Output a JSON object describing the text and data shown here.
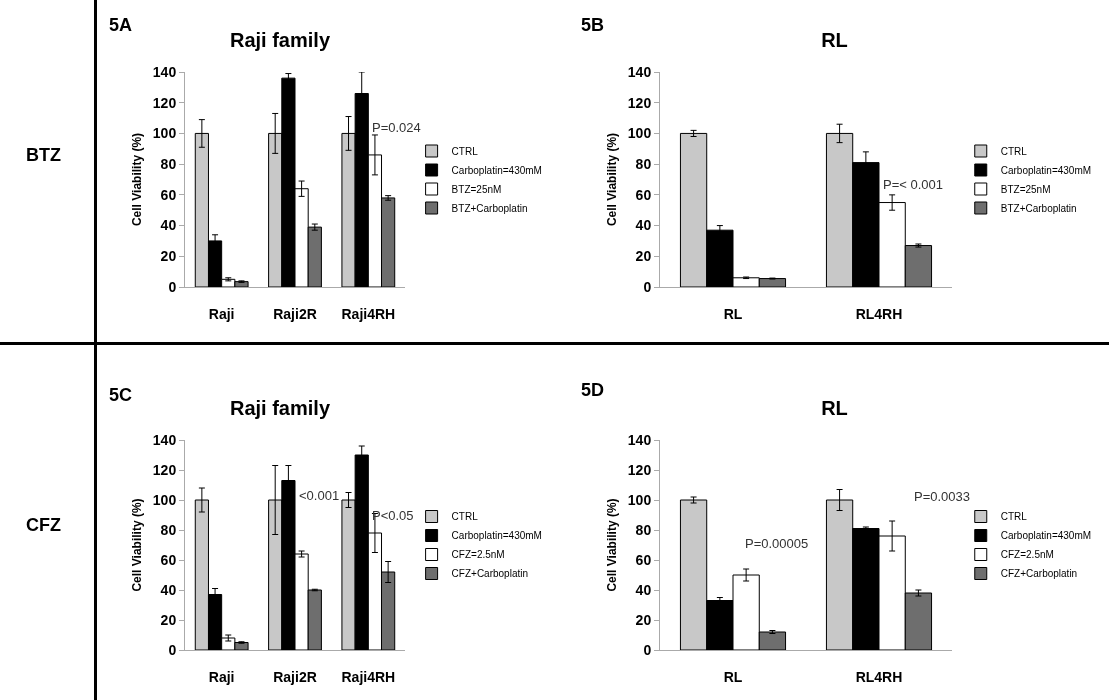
{
  "chart_data": [
    {
      "type": "bar",
      "title": "Raji family",
      "ylabel": "Cell Viability (%)",
      "categories": [
        "Raji",
        "Raji2R",
        "Raji4RH"
      ],
      "ylim": [
        0,
        140
      ],
      "yticks": [
        0,
        20,
        40,
        60,
        80,
        100,
        120,
        140
      ],
      "grid": false,
      "legend": "right",
      "annotations": [
        "5A",
        "BTZ",
        {
          "text": "P=0.024",
          "x": "Raji4RH",
          "y": 104
        }
      ],
      "series": [
        {
          "name": "CTRL",
          "color": "#c8c8c8",
          "values": [
            100,
            100,
            100
          ],
          "errors": [
            9,
            13,
            11
          ]
        },
        {
          "name": "Carboplatin=430mM",
          "color": "#000000",
          "values": [
            30,
            136,
            126
          ],
          "errors": [
            4,
            3,
            14
          ]
        },
        {
          "name": "BTZ=25nM",
          "color": "#ffffff",
          "values": [
            5,
            64,
            86
          ],
          "errors": [
            1,
            5,
            13
          ]
        },
        {
          "name": "BTZ+Carboplatin",
          "color": "#6e6e6e",
          "values": [
            3.5,
            39,
            58
          ],
          "errors": [
            0.5,
            2,
            1.5
          ]
        }
      ]
    },
    {
      "type": "bar",
      "title": "RL",
      "ylabel": "Cell Viability (%)",
      "categories": [
        "RL",
        "RL4RH"
      ],
      "ylim": [
        0,
        140
      ],
      "yticks": [
        0,
        20,
        40,
        60,
        80,
        100,
        120,
        140
      ],
      "grid": false,
      "legend": "right",
      "annotations": [
        "5B",
        {
          "text": "P=< 0.001",
          "x": "RL4RH",
          "y": 67
        }
      ],
      "series": [
        {
          "name": "CTRL",
          "color": "#c8c8c8",
          "values": [
            100,
            100
          ],
          "errors": [
            2,
            6
          ]
        },
        {
          "name": "Carboplatin=430mM",
          "color": "#000000",
          "values": [
            37,
            81
          ],
          "errors": [
            3,
            7
          ]
        },
        {
          "name": "BTZ=25nM",
          "color": "#ffffff",
          "values": [
            6,
            55
          ],
          "errors": [
            0.5,
            5
          ]
        },
        {
          "name": "BTZ+Carboplatin",
          "color": "#6e6e6e",
          "values": [
            5.5,
            27
          ],
          "errors": [
            0.3,
            1
          ]
        }
      ]
    },
    {
      "type": "bar",
      "title": "Raji family",
      "ylabel": "Cell Viability (%)",
      "categories": [
        "Raji",
        "Raji2R",
        "Raji4RH"
      ],
      "ylim": [
        0,
        140
      ],
      "yticks": [
        0,
        20,
        40,
        60,
        80,
        100,
        120,
        140
      ],
      "grid": false,
      "legend": "right",
      "annotations": [
        "5C",
        "CFZ",
        {
          "text": "<0.001",
          "x": "Raji2R",
          "y": 103
        },
        {
          "text": "P<0.05",
          "x": "Raji4RH",
          "y": 90
        }
      ],
      "series": [
        {
          "name": "CTRL",
          "color": "#c8c8c8",
          "values": [
            100,
            100,
            100
          ],
          "errors": [
            8,
            23,
            5
          ]
        },
        {
          "name": "Carboplatin=430mM",
          "color": "#000000",
          "values": [
            37,
            113,
            130
          ],
          "errors": [
            4,
            10,
            6
          ]
        },
        {
          "name": "CFZ=2.5nM",
          "color": "#ffffff",
          "values": [
            8,
            64,
            78
          ],
          "errors": [
            2,
            2,
            13
          ]
        },
        {
          "name": "CFZ+Carboplatin",
          "color": "#6e6e6e",
          "values": [
            5,
            40,
            52
          ],
          "errors": [
            0.5,
            0.5,
            7
          ]
        }
      ]
    },
    {
      "type": "bar",
      "title": "RL",
      "ylabel": "Cell Viability (%)",
      "categories": [
        "RL",
        "RL4RH"
      ],
      "ylim": [
        0,
        140
      ],
      "yticks": [
        0,
        20,
        40,
        60,
        80,
        100,
        120,
        140
      ],
      "grid": false,
      "legend": "right",
      "annotations": [
        "5D",
        "P=0.00005",
        "P=0.0033"
      ],
      "series": [
        {
          "name": "CTRL",
          "color": "#c8c8c8",
          "values": [
            100,
            100
          ],
          "errors": [
            2,
            7
          ]
        },
        {
          "name": "Carboplatin=430mM",
          "color": "#000000",
          "values": [
            33,
            81
          ],
          "errors": [
            2,
            1
          ]
        },
        {
          "name": "CFZ=2.5nM",
          "color": "#ffffff",
          "values": [
            50,
            76
          ],
          "errors": [
            4,
            10
          ]
        },
        {
          "name": "CFZ+Carboplatin",
          "color": "#6e6e6e",
          "values": [
            12,
            38
          ],
          "errors": [
            1,
            2
          ]
        }
      ]
    }
  ]
}
